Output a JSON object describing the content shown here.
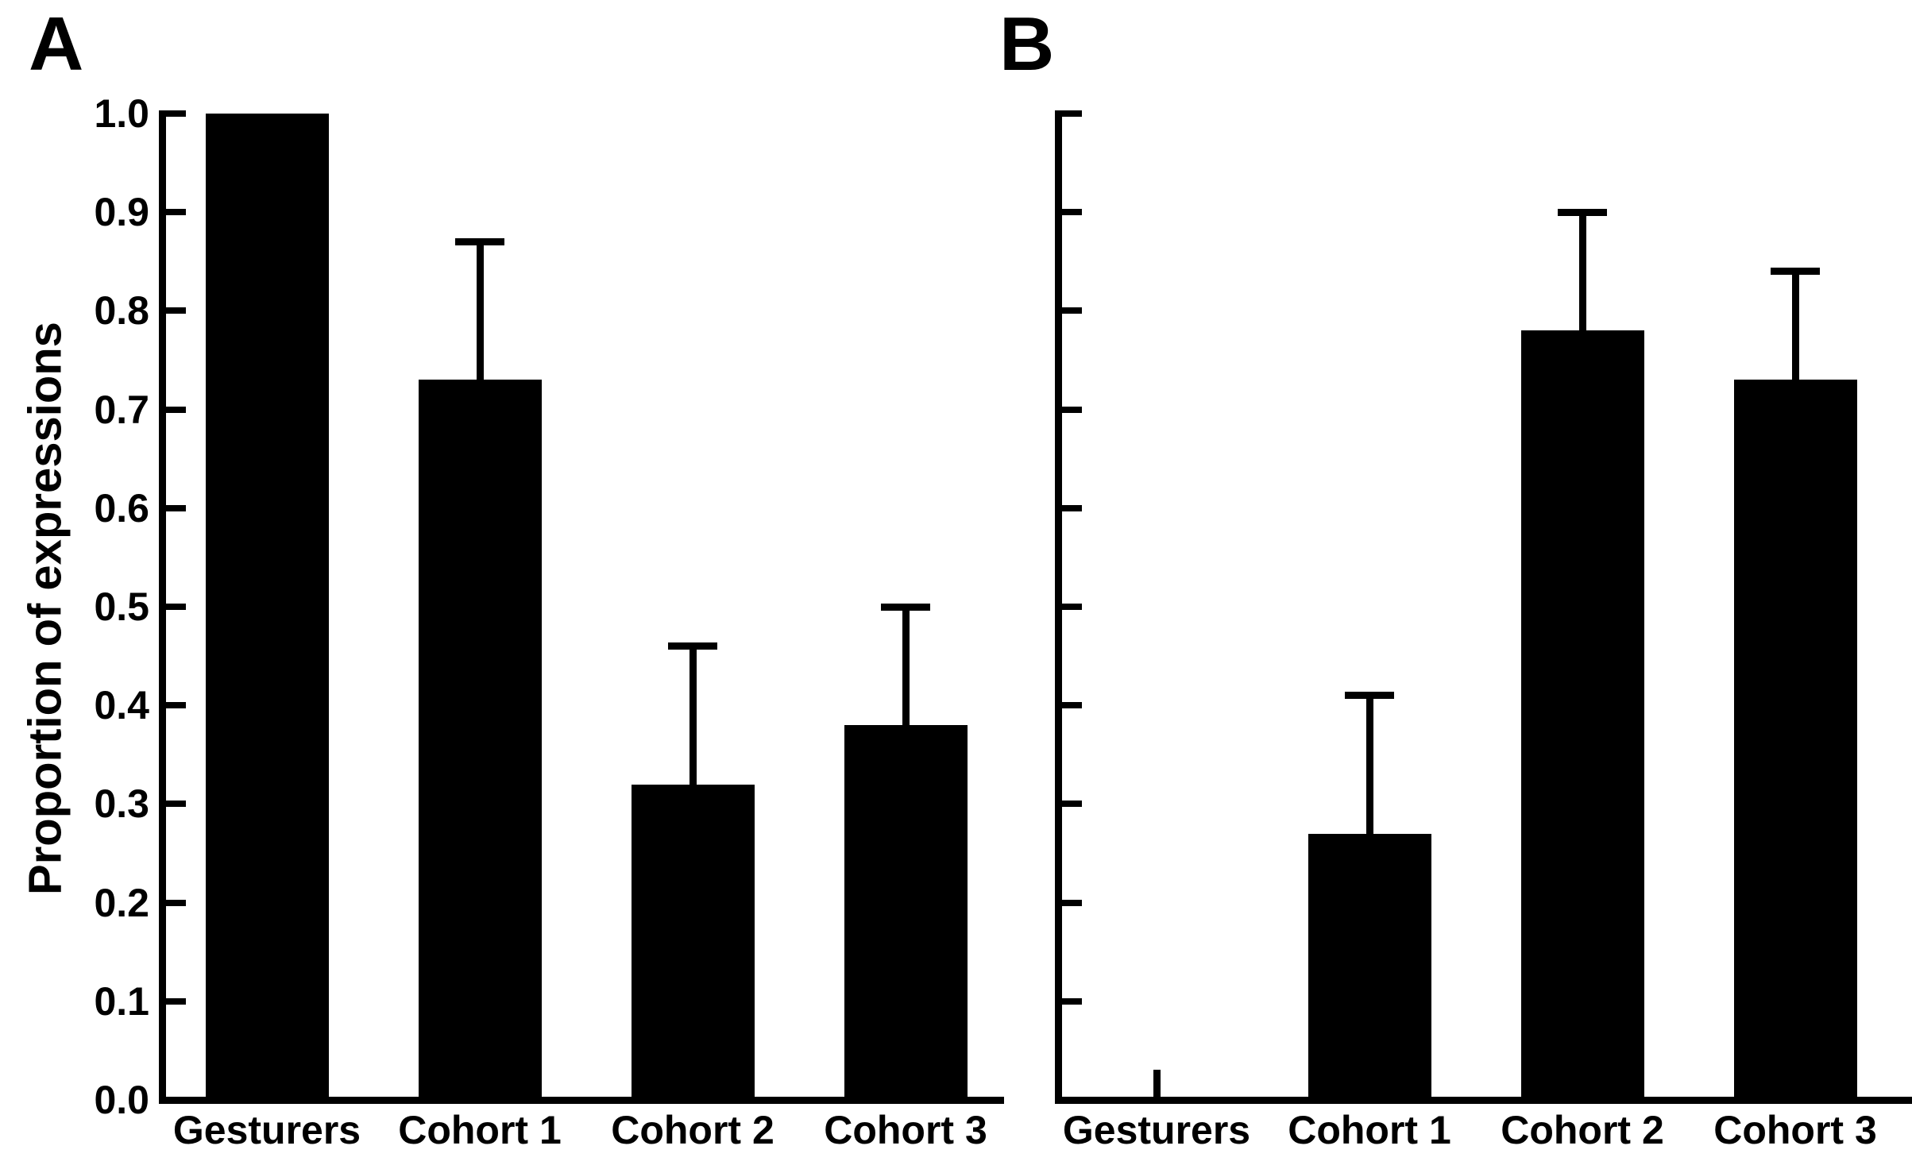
{
  "figure": {
    "background_color": "#ffffff",
    "ink_color": "#000000",
    "panels": [
      {
        "letter": "A"
      },
      {
        "letter": "B"
      }
    ]
  },
  "chart_data": [
    {
      "panel": "A",
      "type": "bar",
      "title": "",
      "xlabel": "",
      "ylabel": "Proportion of expressions",
      "ylim": [
        0.0,
        1.0
      ],
      "ytick_step": 0.1,
      "ytick_labels": [
        "1.0",
        "0.9",
        "0.8",
        "0.7",
        "0.6",
        "0.5",
        "0.4",
        "0.3",
        "0.2",
        "0.1",
        "0.0"
      ],
      "show_ytick_labels": true,
      "grid": false,
      "legend": false,
      "bar_color": "#000000",
      "categories": [
        "Gesturers",
        "Cohort 1",
        "Cohort 2",
        "Cohort 3"
      ],
      "values": [
        1.0,
        0.73,
        0.32,
        0.38
      ],
      "error_upper": [
        null,
        0.87,
        0.46,
        0.5
      ]
    },
    {
      "panel": "B",
      "type": "bar",
      "title": "",
      "xlabel": "",
      "ylabel": "",
      "ylim": [
        0.0,
        1.0
      ],
      "ytick_step": 0.1,
      "ytick_labels": [],
      "show_ytick_labels": false,
      "grid": false,
      "legend": false,
      "bar_color": "#000000",
      "categories": [
        "Gesturers",
        "Cohort 1",
        "Cohort 2",
        "Cohort 3"
      ],
      "values": [
        0.0,
        0.27,
        0.78,
        0.73
      ],
      "error_upper": [
        null,
        0.41,
        0.9,
        0.84
      ],
      "zero_value_stub": true
    }
  ]
}
